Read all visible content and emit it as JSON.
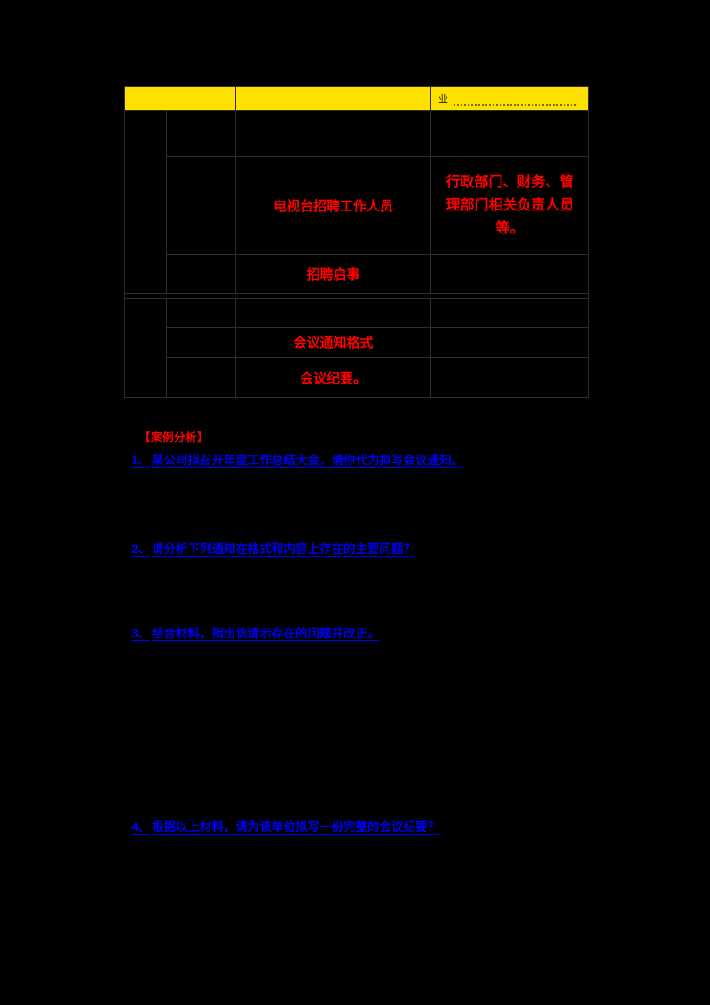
{
  "colors": {
    "background": "#000000",
    "header_bg": "#ffe100",
    "red_text": "#ff0000",
    "blue_text": "#0000ee",
    "table_border": "#2e2e2e"
  },
  "table": {
    "header_c3": "业",
    "r2_c3": "电视台招聘工作人员",
    "r2_c4_l1": "行政部门、财务、管",
    "r2_c4_l2": "理部门相关负责人员",
    "r2_c4_l3": "等。",
    "r3_c3": "招聘启事",
    "r5_c3": "会议通知格式",
    "r6_c3": "会议纪要。"
  },
  "section": {
    "heading": "【案例分析】"
  },
  "questions": [
    {
      "label": "1、",
      "text": "某公司拟召开年度工作总结大会，请你代为拟写会议通知。"
    },
    {
      "label": "2、",
      "text": "请分析下列通知在格式和内容上存在的主要问题？"
    },
    {
      "label": "3、",
      "text": "结合材料，指出该请示存在的问题并改正。"
    },
    {
      "label": "4、",
      "text": "根据以上材料，请为该单位拟写一份完整的会议纪要？"
    }
  ]
}
